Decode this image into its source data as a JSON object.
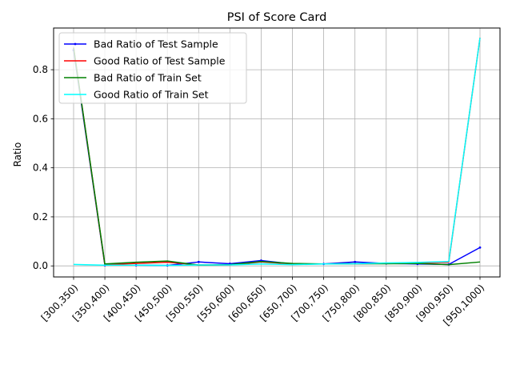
{
  "chart_data": {
    "type": "line",
    "title": "PSI of Score Card",
    "xlabel": "",
    "ylabel": "Ratio",
    "categories": [
      "[300,350)",
      "[350,400)",
      "[400,450)",
      "[450,500)",
      "[500,550)",
      "[550,600)",
      "[600,650)",
      "[650,700)",
      "[700,750)",
      "[750,800)",
      "[800,850)",
      "[850,900)",
      "[900,950)",
      "[950,1000)"
    ],
    "ylim": [
      -0.045,
      0.97
    ],
    "yticks": [
      0.0,
      0.2,
      0.4,
      0.6,
      0.8
    ],
    "ytick_labels": [
      "0.0",
      "0.2",
      "0.4",
      "0.6",
      "0.8"
    ],
    "grid": true,
    "legend_position": "top-left",
    "series": [
      {
        "name": "Bad Ratio of Test Sample",
        "color": "#0000ff",
        "marker": true,
        "values": [
          0.88,
          0.003,
          0.003,
          0.002,
          0.016,
          0.009,
          0.022,
          0.008,
          0.008,
          0.016,
          0.01,
          0.008,
          0.006,
          0.075
        ]
      },
      {
        "name": "Good Ratio of Test Sample",
        "color": "#ff0000",
        "marker": false,
        "values": [
          0.89,
          0.005,
          0.01,
          0.015,
          0.004,
          0.004,
          0.016,
          0.008,
          0.008,
          0.009,
          0.01,
          0.012,
          0.015,
          0.93
        ]
      },
      {
        "name": "Bad Ratio of Train Set",
        "color": "#008000",
        "marker": false,
        "values": [
          0.89,
          0.008,
          0.015,
          0.02,
          0.003,
          0.005,
          0.018,
          0.01,
          0.008,
          0.009,
          0.009,
          0.01,
          0.005,
          0.016
        ]
      },
      {
        "name": "Good Ratio of Train Set",
        "color": "#00ffff",
        "marker": false,
        "values": [
          0.006,
          0.003,
          0.003,
          0.002,
          0.004,
          0.004,
          0.008,
          0.005,
          0.008,
          0.009,
          0.012,
          0.014,
          0.018,
          0.93
        ]
      }
    ]
  }
}
